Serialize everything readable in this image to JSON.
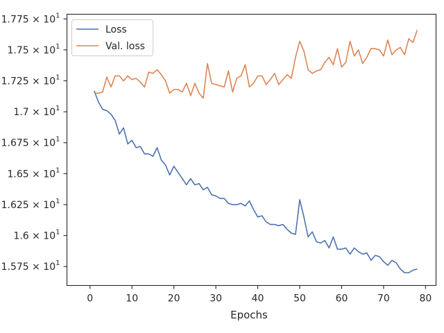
{
  "chart_data": {
    "type": "line",
    "title": "",
    "xlabel": "Epochs",
    "ylabel": "",
    "xlim": [
      -5.5,
      82.5
    ],
    "ylim": [
      15.597,
      17.788
    ],
    "xticks": [
      0,
      10,
      20,
      30,
      40,
      50,
      60,
      70,
      80
    ],
    "xtick_labels": [
      "0",
      "10",
      "20",
      "30",
      "40",
      "50",
      "60",
      "70",
      "80"
    ],
    "yticks": [
      15.75,
      16.0,
      16.25,
      16.5,
      16.75,
      17.0,
      17.25,
      17.5,
      17.75
    ],
    "ytick_labels": [
      {
        "mantissa": "1.575 × 10",
        "exp": "1"
      },
      {
        "mantissa": "1.6 × 10",
        "exp": "1"
      },
      {
        "mantissa": "1.625 × 10",
        "exp": "1"
      },
      {
        "mantissa": "1.65 × 10",
        "exp": "1"
      },
      {
        "mantissa": "1.675 × 10",
        "exp": "1"
      },
      {
        "mantissa": "1.7 × 10",
        "exp": "1"
      },
      {
        "mantissa": "1.725 × 10",
        "exp": "1"
      },
      {
        "mantissa": "1.75 × 10",
        "exp": "1"
      },
      {
        "mantissa": "1.775 × 10",
        "exp": "1"
      }
    ],
    "grid": false,
    "legend_position": "top-left",
    "x": [
      1,
      2,
      3,
      4,
      5,
      6,
      7,
      8,
      9,
      10,
      11,
      12,
      13,
      14,
      15,
      16,
      17,
      18,
      19,
      20,
      21,
      22,
      23,
      24,
      25,
      26,
      27,
      28,
      29,
      30,
      31,
      32,
      33,
      34,
      35,
      36,
      37,
      38,
      39,
      40,
      41,
      42,
      43,
      44,
      45,
      46,
      47,
      48,
      49,
      50,
      51,
      52,
      53,
      54,
      55,
      56,
      57,
      58,
      59,
      60,
      61,
      62,
      63,
      64,
      65,
      66,
      67,
      68,
      69,
      70,
      71,
      72,
      73,
      74,
      75,
      76,
      77,
      78
    ],
    "series": [
      {
        "name": "Loss",
        "color": "#4c72b0",
        "values": [
          17.17,
          17.08,
          17.02,
          17.01,
          16.98,
          16.93,
          16.82,
          16.87,
          16.74,
          16.77,
          16.71,
          16.72,
          16.66,
          16.66,
          16.64,
          16.71,
          16.61,
          16.57,
          16.49,
          16.56,
          16.51,
          16.46,
          16.41,
          16.46,
          16.41,
          16.42,
          16.37,
          16.39,
          16.33,
          16.32,
          16.3,
          16.3,
          16.26,
          16.25,
          16.25,
          16.26,
          16.24,
          16.28,
          16.21,
          16.15,
          16.16,
          16.11,
          16.09,
          16.09,
          16.08,
          16.09,
          16.05,
          16.02,
          16.01,
          16.29,
          16.15,
          15.99,
          16.03,
          15.95,
          15.94,
          15.96,
          15.9,
          15.99,
          15.89,
          15.89,
          15.9,
          15.85,
          15.9,
          15.87,
          15.85,
          15.86,
          15.8,
          15.84,
          15.83,
          15.79,
          15.76,
          15.8,
          15.78,
          15.73,
          15.7,
          15.7,
          15.72,
          15.73
        ]
      },
      {
        "name": "Val. loss",
        "color": "#dd8452",
        "values": [
          17.15,
          17.15,
          17.16,
          17.28,
          17.2,
          17.29,
          17.29,
          17.25,
          17.29,
          17.26,
          17.27,
          17.24,
          17.2,
          17.32,
          17.31,
          17.34,
          17.3,
          17.25,
          17.15,
          17.18,
          17.18,
          17.16,
          17.23,
          17.13,
          17.23,
          17.15,
          17.11,
          17.39,
          17.23,
          17.22,
          17.21,
          17.2,
          17.33,
          17.16,
          17.27,
          17.29,
          17.38,
          17.2,
          17.23,
          17.29,
          17.29,
          17.22,
          17.26,
          17.31,
          17.22,
          17.26,
          17.3,
          17.27,
          17.44,
          17.57,
          17.49,
          17.34,
          17.31,
          17.33,
          17.34,
          17.4,
          17.44,
          17.38,
          17.51,
          17.36,
          17.4,
          17.57,
          17.45,
          17.5,
          17.39,
          17.44,
          17.51,
          17.51,
          17.5,
          17.45,
          17.58,
          17.46,
          17.5,
          17.52,
          17.46,
          17.59,
          17.56,
          17.66
        ]
      }
    ]
  }
}
